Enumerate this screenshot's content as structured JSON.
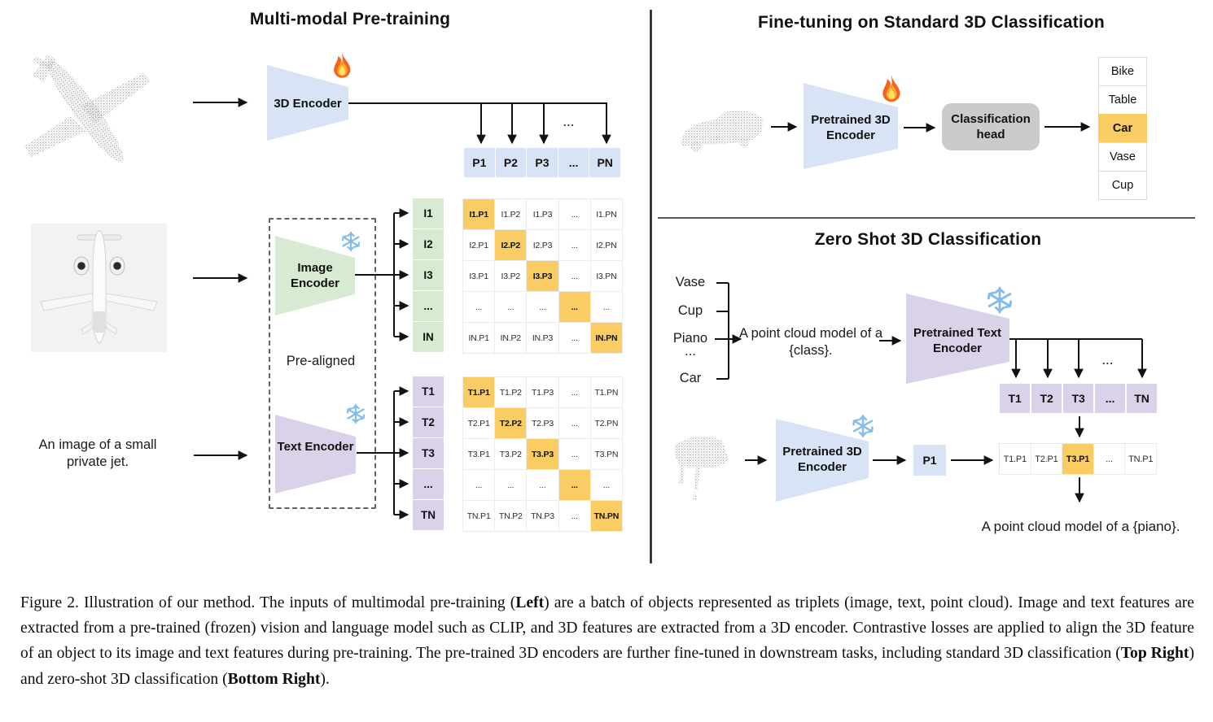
{
  "colors": {
    "blue": "#d8e3f6",
    "green": "#d9ead3",
    "purple": "#d9d2e9",
    "orange": "#f9cd64",
    "head_gray": "#cbcbcb",
    "arrow": "#121212"
  },
  "left": {
    "title": "Multi-modal Pre-training",
    "encoder_3d_label": "3D Encoder",
    "image_encoder_label": "Image Encoder",
    "text_encoder_label": "Text Encoder",
    "pre_aligned_label": "Pre-aligned",
    "jet_caption": "An image of a small private jet.",
    "p_dots": "...",
    "p_row": [
      "P1",
      "P2",
      "P3",
      "...",
      "PN"
    ],
    "i_labels": [
      "I1",
      "I2",
      "I3",
      "...",
      "IN"
    ],
    "t_labels": [
      "T1",
      "T2",
      "T3",
      "...",
      "TN"
    ],
    "highlight_diagonal": true,
    "i_matrix": [
      [
        "I1.P1",
        "I1.P2",
        "I1.P3",
        "...",
        "I1.PN"
      ],
      [
        "I2.P1",
        "I2.P2",
        "I2.P3",
        "...",
        "I2.PN"
      ],
      [
        "I3.P1",
        "I3.P2",
        "I3.P3",
        "...",
        "I3.PN"
      ],
      [
        "...",
        "...",
        "...",
        "...",
        "..."
      ],
      [
        "IN.P1",
        "IN.P2",
        "IN.P3",
        "...",
        "IN.PN"
      ]
    ],
    "t_matrix": [
      [
        "T1.P1",
        "T1.P2",
        "T1.P3",
        "...",
        "T1.PN"
      ],
      [
        "T2.P1",
        "T2.P2",
        "T2.P3",
        "...",
        "T2.PN"
      ],
      [
        "T3.P1",
        "T3.P2",
        "T3.P3",
        "...",
        "T3.PN"
      ],
      [
        "...",
        "...",
        "...",
        "...",
        "..."
      ],
      [
        "TN.P1",
        "TN.P2",
        "TN.P3",
        "...",
        "TN.PN"
      ]
    ]
  },
  "top_right": {
    "title": "Fine-tuning on Standard 3D Classification",
    "encoder_label": "Pretrained 3D Encoder",
    "head_label": "Classification head",
    "classes": [
      {
        "label": "Bike",
        "highlighted": false
      },
      {
        "label": "Table",
        "highlighted": false
      },
      {
        "label": "Car",
        "highlighted": true
      },
      {
        "label": "Vase",
        "highlighted": false
      },
      {
        "label": "Cup",
        "highlighted": false
      }
    ]
  },
  "bottom_right": {
    "title": "Zero Shot 3D Classification",
    "class_list": [
      "Vase",
      "Cup",
      "Piano",
      "...",
      "Car"
    ],
    "prompt": "A point cloud model of a {class}.",
    "text_encoder_label": "Pretrained Text Encoder",
    "encoder_3d_label": "Pretrained 3D Encoder",
    "p1_label": "P1",
    "t_dots": "...",
    "t_row": [
      "T1",
      "T2",
      "T3",
      "...",
      "TN"
    ],
    "sim_row": [
      "T1.P1",
      "T2.P1",
      "T3.P1",
      "...",
      "TN.P1"
    ],
    "sim_highlight_index": 2,
    "result_text": "A point cloud model of a {piano}."
  },
  "caption": {
    "segments": [
      {
        "text": "Figure 2. Illustration of our method.  The inputs of multimodal pre-training (",
        "bold": false
      },
      {
        "text": "Left",
        "bold": true
      },
      {
        "text": ") are a batch of objects represented as triplets (image, text, point cloud).  Image and text features are extracted from a pre-trained (frozen) vision and language model such as CLIP, and 3D features are extracted from a 3D encoder.  Contrastive losses are applied to align the 3D feature of an object to its image and text features during pre-training.  The pre-trained 3D encoders are further fine-tuned in downstream tasks, including standard 3D classification (",
        "bold": false
      },
      {
        "text": "Top Right",
        "bold": true
      },
      {
        "text": ") and zero-shot 3D classification (",
        "bold": false
      },
      {
        "text": "Bottom Right",
        "bold": true
      },
      {
        "text": ").",
        "bold": false
      }
    ]
  }
}
